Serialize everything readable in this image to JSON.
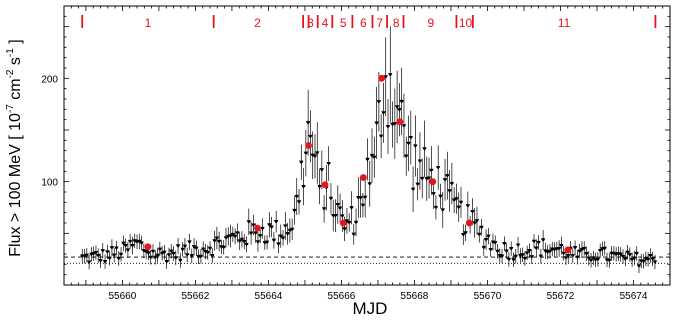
{
  "chart_data": {
    "type": "scatter",
    "xlabel": "MJD",
    "ylabel_main": "Flux > 100 MeV [ 10",
    "ylabel_exp1": "-7",
    "ylabel_mid": " cm",
    "ylabel_exp2": "-2",
    "ylabel_end": " s",
    "ylabel_exp3": "-1",
    "ylabel_close": " ]",
    "xlim": [
      55658.4,
      55675.0
    ],
    "ylim": [
      0,
      270
    ],
    "x_ticks": [
      55660,
      55662,
      55664,
      55666,
      55668,
      55670,
      55672,
      55674
    ],
    "y_ticks": [
      100,
      200
    ],
    "grid": false,
    "colors": {
      "points": "#000000",
      "averages": "#e8141c",
      "periods": "#e8141c"
    },
    "reference_lines": [
      {
        "style": "dashed",
        "y": 27
      },
      {
        "style": "dotted",
        "y": 21
      }
    ],
    "period_boundaries": [
      55658.9,
      55662.5,
      55664.95,
      55665.1,
      55665.35,
      55665.75,
      55666.3,
      55666.85,
      55667.25,
      55667.7,
      55669.15,
      55669.6,
      55674.6
    ],
    "period_labels": [
      {
        "label": "1",
        "x": 55660.7
      },
      {
        "label": "2",
        "x": 55663.7
      },
      {
        "label": "3",
        "x": 55665.15
      },
      {
        "label": "4",
        "x": 55665.55
      },
      {
        "label": "5",
        "x": 55666.05
      },
      {
        "label": "6",
        "x": 55666.6
      },
      {
        "label": "7",
        "x": 55667.05
      },
      {
        "label": "8",
        "x": 55667.5
      },
      {
        "label": "9",
        "x": 55668.45
      },
      {
        "label": "10",
        "x": 55669.4
      },
      {
        "label": "11",
        "x": 55672.1
      }
    ],
    "series": [
      {
        "kind": "light curve with error bars",
        "anchors": [
          [
            55658.9,
            26
          ],
          [
            55659.5,
            28
          ],
          [
            55660.0,
            32
          ],
          [
            55660.4,
            40
          ],
          [
            55660.8,
            30
          ],
          [
            55661.3,
            30
          ],
          [
            55661.8,
            33
          ],
          [
            55662.3,
            36
          ],
          [
            55662.8,
            42
          ],
          [
            55663.3,
            48
          ],
          [
            55663.8,
            52
          ],
          [
            55664.3,
            50
          ],
          [
            55664.7,
            62
          ],
          [
            55664.95,
            115
          ],
          [
            55665.1,
            145
          ],
          [
            55665.25,
            125
          ],
          [
            55665.4,
            90
          ],
          [
            55665.6,
            100
          ],
          [
            55665.8,
            78
          ],
          [
            55666.0,
            62
          ],
          [
            55666.2,
            58
          ],
          [
            55666.4,
            68
          ],
          [
            55666.7,
            105
          ],
          [
            55666.9,
            112
          ],
          [
            55667.05,
            165
          ],
          [
            55667.2,
            205
          ],
          [
            55667.35,
            190
          ],
          [
            55667.55,
            170
          ],
          [
            55667.7,
            145
          ],
          [
            55667.9,
            125
          ],
          [
            55668.1,
            112
          ],
          [
            55668.4,
            102
          ],
          [
            55668.7,
            95
          ],
          [
            55669.0,
            80
          ],
          [
            55669.3,
            65
          ],
          [
            55669.6,
            58
          ],
          [
            55669.9,
            48
          ],
          [
            55670.2,
            38
          ],
          [
            55670.6,
            32
          ],
          [
            55671.0,
            34
          ],
          [
            55671.5,
            36
          ],
          [
            55672.0,
            34
          ],
          [
            55672.5,
            28
          ],
          [
            55673.0,
            30
          ],
          [
            55673.5,
            27
          ],
          [
            55674.0,
            25
          ],
          [
            55674.6,
            24
          ]
        ],
        "spacing": 0.0625,
        "scatter_fraction": 0.16
      },
      {
        "kind": "period averages",
        "points": [
          [
            55660.7,
            37
          ],
          [
            55663.7,
            55
          ],
          [
            55665.1,
            135
          ],
          [
            55665.55,
            97
          ],
          [
            55666.05,
            60
          ],
          [
            55666.6,
            104
          ],
          [
            55667.1,
            200
          ],
          [
            55667.6,
            158
          ],
          [
            55668.5,
            100
          ],
          [
            55669.5,
            60
          ],
          [
            55672.2,
            34
          ]
        ]
      }
    ]
  }
}
